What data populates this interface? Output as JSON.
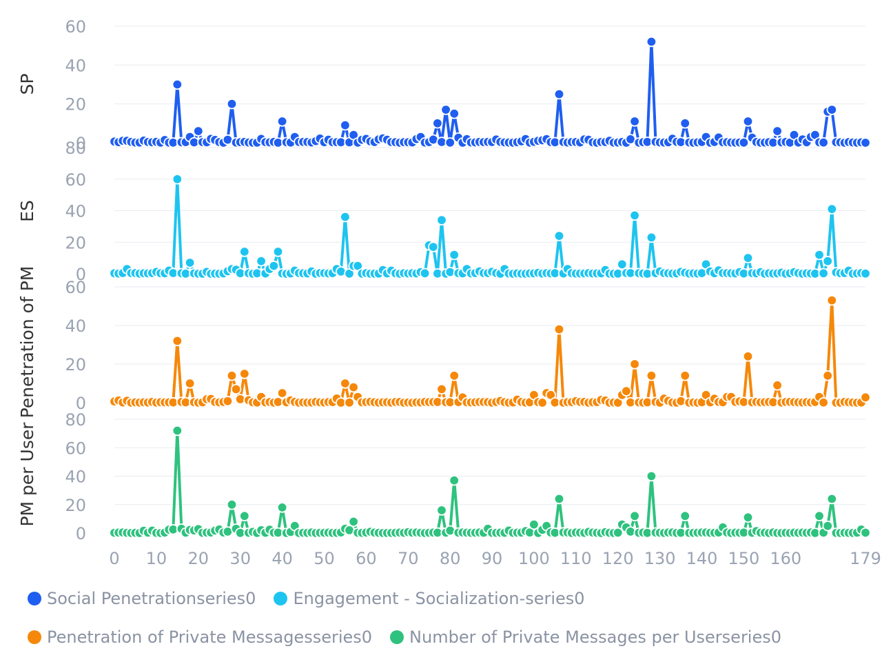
{
  "chart_data": {
    "type": "line",
    "x_ticks": [
      "0",
      "10",
      "20",
      "30",
      "40",
      "50",
      "60",
      "70",
      "80",
      "90",
      "100",
      "110",
      "120",
      "130",
      "140",
      "150",
      "160",
      "179"
    ],
    "xlim": [
      0,
      179
    ],
    "panels": [
      {
        "ylabel": "SP",
        "series_name": "Social Penetrationseries0",
        "color": "#1f5ef0",
        "ylim": [
          0,
          60
        ],
        "y_ticks": [
          "0",
          "20",
          "40",
          "60"
        ],
        "points": [
          [
            15,
            30
          ],
          [
            28,
            20
          ],
          [
            40,
            11
          ],
          [
            55,
            9
          ],
          [
            77,
            10
          ],
          [
            79,
            17
          ],
          [
            81,
            15
          ],
          [
            106,
            25
          ],
          [
            124,
            11
          ],
          [
            128,
            52
          ],
          [
            136,
            10
          ],
          [
            151,
            11
          ],
          [
            170,
            16
          ],
          [
            171,
            17
          ],
          [
            3,
            1
          ],
          [
            20,
            6
          ],
          [
            18,
            3
          ],
          [
            23,
            2
          ],
          [
            35,
            2
          ],
          [
            43,
            3
          ],
          [
            57,
            4
          ],
          [
            60,
            2
          ],
          [
            73,
            3
          ],
          [
            101,
            1
          ],
          [
            118,
            1
          ],
          [
            141,
            3
          ],
          [
            158,
            6
          ],
          [
            162,
            4
          ],
          [
            166,
            3
          ],
          [
            167,
            4
          ]
        ]
      },
      {
        "ylabel": "ES",
        "series_name": "Engagement - Socialization-series0",
        "color": "#1ec4f0",
        "ylim": [
          0,
          80
        ],
        "y_ticks": [
          "0",
          "20",
          "40",
          "60",
          "80"
        ],
        "points": [
          [
            15,
            60
          ],
          [
            18,
            7
          ],
          [
            31,
            14
          ],
          [
            35,
            8
          ],
          [
            39,
            14
          ],
          [
            55,
            36
          ],
          [
            57,
            5
          ],
          [
            58,
            5
          ],
          [
            75,
            18
          ],
          [
            76,
            17
          ],
          [
            78,
            34
          ],
          [
            81,
            12
          ],
          [
            106,
            24
          ],
          [
            121,
            6
          ],
          [
            124,
            37
          ],
          [
            128,
            23
          ],
          [
            141,
            6
          ],
          [
            151,
            10
          ],
          [
            168,
            12
          ],
          [
            170,
            8
          ],
          [
            171,
            41
          ],
          [
            3,
            3
          ],
          [
            13,
            2
          ],
          [
            28,
            3
          ],
          [
            37,
            3
          ],
          [
            38,
            5
          ],
          [
            43,
            2
          ],
          [
            53,
            3
          ],
          [
            84,
            3
          ],
          [
            93,
            3
          ],
          [
            108,
            3
          ]
        ]
      },
      {
        "ylabel": "Penetration of PM",
        "series_name": "Penetration of Private Messagesseries0",
        "color": "#f5880a",
        "ylim": [
          0,
          60
        ],
        "y_ticks": [
          "0",
          "20",
          "40",
          "60"
        ],
        "points": [
          [
            15,
            32
          ],
          [
            18,
            10
          ],
          [
            28,
            14
          ],
          [
            29,
            7
          ],
          [
            31,
            15
          ],
          [
            40,
            5
          ],
          [
            55,
            10
          ],
          [
            57,
            8
          ],
          [
            78,
            7
          ],
          [
            81,
            14
          ],
          [
            106,
            38
          ],
          [
            124,
            20
          ],
          [
            128,
            14
          ],
          [
            136,
            14
          ],
          [
            151,
            24
          ],
          [
            158,
            9
          ],
          [
            168,
            3
          ],
          [
            170,
            14
          ],
          [
            171,
            53
          ],
          [
            100,
            4
          ],
          [
            103,
            5
          ],
          [
            104,
            4
          ],
          [
            121,
            4
          ],
          [
            122,
            6
          ],
          [
            141,
            4
          ],
          [
            146,
            3
          ],
          [
            147,
            3
          ],
          [
            3,
            1
          ],
          [
            35,
            3
          ],
          [
            58,
            3
          ]
        ]
      },
      {
        "ylabel": "PM per User",
        "series_name": "Number of Private Messages per Userseries0",
        "color": "#2ec27e",
        "ylim": [
          0,
          80
        ],
        "y_ticks": [
          "0",
          "20",
          "40",
          "60",
          "80"
        ],
        "points": [
          [
            15,
            72
          ],
          [
            28,
            20
          ],
          [
            31,
            12
          ],
          [
            40,
            18
          ],
          [
            57,
            8
          ],
          [
            78,
            16
          ],
          [
            81,
            37
          ],
          [
            106,
            24
          ],
          [
            124,
            12
          ],
          [
            128,
            40
          ],
          [
            136,
            12
          ],
          [
            151,
            11
          ],
          [
            168,
            12
          ],
          [
            170,
            5
          ],
          [
            171,
            24
          ],
          [
            16,
            3
          ],
          [
            29,
            3
          ],
          [
            43,
            5
          ],
          [
            55,
            3
          ],
          [
            100,
            6
          ],
          [
            103,
            5
          ],
          [
            121,
            6
          ],
          [
            122,
            4
          ],
          [
            145,
            4
          ],
          [
            35,
            2
          ],
          [
            89,
            3
          ]
        ]
      }
    ],
    "legend": [
      {
        "name": "Social Penetrationseries0",
        "color": "#1f5ef0"
      },
      {
        "name": "Engagement - Socialization-series0",
        "color": "#1ec4f0"
      },
      {
        "name": "Penetration of Private Messagesseries0",
        "color": "#f5880a"
      },
      {
        "name": "Number of Private Messages per Userseries0",
        "color": "#2ec27e"
      }
    ]
  }
}
